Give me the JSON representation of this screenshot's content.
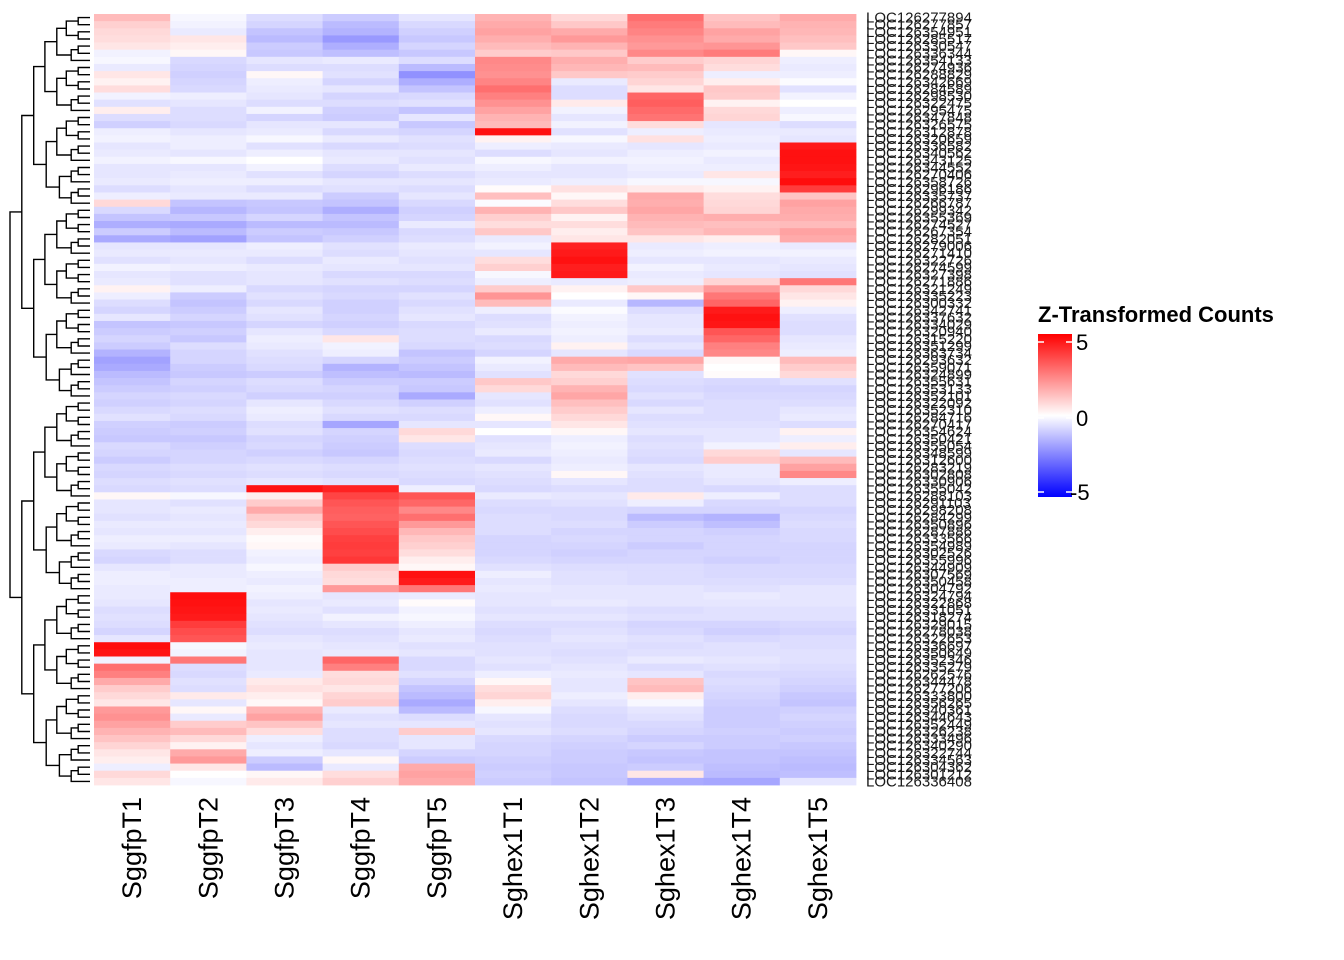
{
  "chart_data": {
    "type": "heatmap",
    "title": "",
    "columns": [
      "SggfpT1",
      "SggfpT2",
      "SggfpT3",
      "SggfpT4",
      "SggfpT5",
      "Sghex1T1",
      "Sghex1T2",
      "Sghex1T3",
      "Sghex1T4",
      "Sghex1T5"
    ],
    "row_labels": [
      "LOC126277894",
      "LOC126277857",
      "LOC126354951",
      "LOC126285517",
      "LOC126330547",
      "LOC126336344",
      "LOC126354133",
      "LOC126274936",
      "LOC126288829",
      "LOC126342669",
      "LOC126284589",
      "LOC126298530",
      "LOC126322475",
      "LOC126295475",
      "LOC126347848",
      "LOC126326575",
      "LOC126312878",
      "LOC126320659",
      "LOC126336582",
      "LOC126340562",
      "LOC126343125",
      "LOC126344552",
      "LOC126270406",
      "LOC126358726",
      "LOC126296186",
      "LOC126335737",
      "LOC126266787",
      "LOC126299342",
      "LOC126355369",
      "LOC126274527",
      "LOC126267354",
      "LOC126282051",
      "LOC126279006",
      "LOC126271410",
      "LOC126322726",
      "LOC126274599",
      "LOC126327398",
      "LOC126271886",
      "LOC126321249",
      "LOC126335223",
      "LOC126300332",
      "LOC126342741",
      "LOC126337632",
      "LOC126334029",
      "LOC126320940",
      "LOC126315220",
      "LOC126351299",
      "LOC126363734",
      "LOC126293632",
      "LOC126359071",
      "LOC126324899",
      "LOC126355631",
      "LOC126353133",
      "LOC126352101",
      "LOC126322092",
      "LOC126352310",
      "LOC126284716",
      "LOC126270417",
      "LOC126354624",
      "LOC126350421",
      "LOC126355054",
      "LOC126348599",
      "LOC126312600",
      "LOC126283219",
      "LOC126302808",
      "LOC126330906",
      "LOC126355042",
      "LOC126288103",
      "LOC126291103",
      "LOC126298208",
      "LOC126284299",
      "LOC126350896",
      "LOC126287886",
      "LOC126333566",
      "LOC126354989",
      "LOC126302526",
      "LOC126355996",
      "LOC126344909",
      "LOC126307569",
      "LOC126350458",
      "LOC126304792",
      "LOC126324794",
      "LOC126322868",
      "LOC126331051",
      "LOC126318274",
      "LOC126329015",
      "LOC126278038",
      "LOC126322653",
      "LOC126336697",
      "LOC126350649",
      "LOC126352346",
      "LOC126335279",
      "LOC126262576",
      "LOC126344478",
      "LOC126277206",
      "LOC126333800",
      "LOC126356265",
      "LOC126340361",
      "LOC126344643",
      "LOC126352449",
      "LOC126326238",
      "LOC126333496",
      "LOC126340290",
      "LOC126322744",
      "LOC126334563",
      "LOC126304362",
      "LOC126301212",
      "LOC126336408"
    ],
    "values": [
      [
        1.6,
        -0.2,
        -0.8,
        -1.2,
        -0.6,
        1.8,
        0.9,
        3.4,
        1.4,
        2.0
      ],
      [
        1.1,
        -0.3,
        -1.0,
        -1.6,
        -0.9,
        2.0,
        1.3,
        3.1,
        1.6,
        1.8
      ],
      [
        0.9,
        -0.5,
        -1.4,
        -1.8,
        -1.1,
        2.2,
        2.0,
        2.9,
        2.2,
        1.7
      ],
      [
        0.8,
        0.6,
        -1.6,
        -2.4,
        -1.3,
        1.9,
        2.4,
        2.6,
        2.0,
        1.5
      ],
      [
        0.6,
        0.4,
        -1.2,
        -1.9,
        -1.0,
        1.6,
        1.8,
        2.4,
        2.5,
        1.3
      ],
      [
        -0.3,
        0.2,
        -1.3,
        -1.5,
        -1.3,
        1.2,
        1.3,
        2.8,
        3.1,
        0.2
      ],
      [
        -0.2,
        -0.9,
        -0.6,
        -0.5,
        -0.8,
        2.8,
        1.9,
        1.2,
        1.0,
        -0.4
      ],
      [
        -0.5,
        -1.0,
        -0.8,
        -0.8,
        -1.6,
        2.7,
        1.7,
        1.6,
        0.8,
        -0.5
      ],
      [
        0.6,
        -1.1,
        0.2,
        -0.7,
        -2.6,
        2.6,
        1.3,
        1.2,
        -0.4,
        -0.4
      ],
      [
        0.3,
        -1.0,
        -0.4,
        -1.0,
        -1.9,
        2.9,
        -0.5,
        1.0,
        0.4,
        -0.1
      ],
      [
        0.8,
        -0.9,
        -0.5,
        -0.6,
        -1.4,
        3.4,
        -0.8,
        0.6,
        1.3,
        -0.7
      ],
      [
        -0.3,
        -0.4,
        -0.6,
        -1.0,
        -0.9,
        3.0,
        -0.8,
        3.6,
        1.2,
        -0.3
      ],
      [
        -0.7,
        -0.6,
        -0.8,
        -0.8,
        -0.7,
        2.6,
        0.5,
        3.8,
        0.3,
        0.0
      ],
      [
        0.4,
        -0.8,
        -0.3,
        -1.1,
        -1.4,
        2.2,
        -0.3,
        3.5,
        0.9,
        -0.4
      ],
      [
        -0.8,
        -0.8,
        -1.0,
        -1.2,
        -0.6,
        1.8,
        -0.6,
        3.3,
        1.0,
        -0.2
      ],
      [
        -1.1,
        -0.9,
        -0.6,
        -0.6,
        -1.3,
        1.6,
        -0.3,
        0.8,
        -0.6,
        -0.8
      ],
      [
        -0.4,
        -0.6,
        -0.5,
        -0.9,
        -1.0,
        5.6,
        -0.7,
        -0.4,
        -0.5,
        -0.5
      ],
      [
        -0.3,
        -0.4,
        -0.2,
        -0.5,
        -0.7,
        0.3,
        -0.2,
        0.7,
        -0.4,
        -0.6
      ],
      [
        -0.6,
        -0.4,
        -0.7,
        -0.9,
        -0.8,
        -0.4,
        -0.5,
        -0.6,
        -0.5,
        5.4
      ],
      [
        -0.5,
        -0.6,
        -0.4,
        -0.6,
        -0.6,
        -0.8,
        -0.6,
        -0.4,
        -0.3,
        5.6
      ],
      [
        -0.3,
        -0.2,
        0.0,
        -0.5,
        -0.7,
        -0.2,
        -0.3,
        -0.3,
        -0.5,
        5.6
      ],
      [
        -0.6,
        -0.6,
        -0.3,
        -0.8,
        -0.5,
        -0.4,
        -0.6,
        -0.4,
        -0.4,
        5.5
      ],
      [
        -0.6,
        -0.5,
        -0.7,
        -1.0,
        -0.8,
        -0.6,
        -0.6,
        -0.5,
        0.6,
        5.3
      ],
      [
        -0.5,
        -0.4,
        -0.4,
        -0.6,
        -0.6,
        -0.5,
        -0.4,
        -0.2,
        -0.2,
        5.7
      ],
      [
        -0.8,
        -0.6,
        -0.8,
        -0.7,
        -0.8,
        0.1,
        0.7,
        0.5,
        0.3,
        4.6
      ],
      [
        -0.4,
        -0.5,
        -0.5,
        -1.2,
        -0.6,
        1.5,
        0.2,
        2.0,
        0.8,
        1.4
      ],
      [
        0.9,
        -1.4,
        -1.3,
        -1.4,
        -0.9,
        -0.1,
        0.8,
        1.9,
        0.9,
        2.2
      ],
      [
        -0.9,
        -1.7,
        -1.4,
        -1.9,
        -1.1,
        1.8,
        1.3,
        2.1,
        1.0,
        2.0
      ],
      [
        -1.4,
        -1.3,
        -1.0,
        -1.4,
        -1.0,
        1.1,
        0.3,
        1.8,
        1.9,
        1.9
      ],
      [
        -1.9,
        -2.0,
        -1.6,
        -1.6,
        -0.5,
        0.8,
        0.8,
        1.6,
        1.5,
        1.6
      ],
      [
        -1.2,
        -1.6,
        -1.2,
        -1.3,
        -0.9,
        1.3,
        0.4,
        1.4,
        1.7,
        2.2
      ],
      [
        -2.0,
        -2.2,
        -1.4,
        -1.1,
        -0.8,
        -0.5,
        0.6,
        0.6,
        0.4,
        2.0
      ],
      [
        -0.6,
        -0.6,
        -0.4,
        -0.7,
        -0.5,
        -0.3,
        5.2,
        -0.5,
        -0.4,
        -0.5
      ],
      [
        -0.5,
        -0.5,
        -0.5,
        -0.8,
        -0.6,
        -0.6,
        5.4,
        -0.4,
        -0.3,
        -0.3
      ],
      [
        -0.7,
        -0.6,
        -0.8,
        -0.5,
        -0.7,
        0.8,
        5.6,
        -0.6,
        -0.6,
        -0.5
      ],
      [
        -0.3,
        -0.4,
        -0.5,
        -0.6,
        -0.6,
        1.1,
        5.3,
        -0.3,
        -0.5,
        -0.6
      ],
      [
        -0.6,
        -0.7,
        -0.6,
        -0.9,
        -0.9,
        -0.2,
        5.4,
        -0.5,
        -0.6,
        -0.7
      ],
      [
        -0.5,
        -0.7,
        -0.6,
        -0.7,
        -0.8,
        -0.4,
        -0.5,
        -0.4,
        1.0,
        3.2
      ],
      [
        0.3,
        -0.4,
        -0.9,
        -1.0,
        -1.0,
        1.2,
        0.3,
        1.3,
        2.4,
        0.9
      ],
      [
        -0.4,
        -1.2,
        -0.7,
        -0.9,
        -0.7,
        2.5,
        0.0,
        0.2,
        3.2,
        0.6
      ],
      [
        -0.8,
        -1.4,
        -0.9,
        -1.1,
        -0.9,
        1.6,
        -0.5,
        -1.7,
        3.6,
        0.3
      ],
      [
        -1.0,
        -1.2,
        -0.6,
        -1.1,
        -0.7,
        -0.4,
        -0.1,
        -0.8,
        5.4,
        -0.4
      ],
      [
        -0.6,
        -1.0,
        -0.7,
        -1.0,
        -0.6,
        -0.8,
        -0.3,
        -0.6,
        5.6,
        -0.7
      ],
      [
        -1.4,
        -1.3,
        -1.0,
        -1.1,
        -0.9,
        -0.7,
        -0.4,
        -0.6,
        5.5,
        -0.8
      ],
      [
        -1.2,
        -1.1,
        -0.6,
        -0.9,
        -0.8,
        -0.5,
        -0.3,
        -0.5,
        4.0,
        -0.8
      ],
      [
        -1.0,
        -1.3,
        -0.4,
        0.6,
        -0.8,
        -0.9,
        -0.4,
        -0.8,
        3.6,
        -0.6
      ],
      [
        -1.2,
        -0.8,
        -0.5,
        -0.3,
        -0.9,
        -0.8,
        0.3,
        -0.6,
        3.0,
        -0.5
      ],
      [
        -1.8,
        -1.0,
        -0.7,
        -0.4,
        -1.4,
        -1.0,
        -0.6,
        -0.9,
        2.8,
        -0.4
      ],
      [
        -2.2,
        -1.0,
        -0.8,
        -1.0,
        -1.2,
        -0.3,
        2.0,
        2.1,
        0.2,
        1.6
      ],
      [
        -2.0,
        -1.2,
        -0.9,
        -1.8,
        -1.4,
        -0.5,
        1.6,
        1.4,
        0.0,
        1.2
      ],
      [
        -1.6,
        -1.3,
        -1.2,
        -1.5,
        -1.6,
        -0.7,
        0.9,
        -0.7,
        0.1,
        0.9
      ],
      [
        -1.4,
        -1.0,
        -0.8,
        -1.2,
        -1.2,
        1.3,
        1.1,
        -0.8,
        -0.9,
        -0.7
      ],
      [
        -1.2,
        -1.1,
        -0.9,
        -1.0,
        -1.3,
        0.9,
        1.8,
        -0.9,
        -1.0,
        -1.0
      ],
      [
        -1.0,
        -0.9,
        -1.1,
        -1.1,
        -2.0,
        -0.6,
        2.1,
        -0.7,
        -0.9,
        -0.9
      ],
      [
        -1.1,
        -1.0,
        -0.6,
        -0.9,
        -1.1,
        -0.7,
        1.5,
        -0.9,
        -0.8,
        -0.8
      ],
      [
        -0.9,
        -0.8,
        -0.4,
        -0.7,
        -0.8,
        -0.4,
        1.2,
        -0.6,
        -0.8,
        -0.6
      ],
      [
        -0.7,
        -0.9,
        -0.5,
        -0.9,
        -0.9,
        0.2,
        0.9,
        -0.8,
        -0.8,
        -0.5
      ],
      [
        -1.1,
        -1.2,
        -0.8,
        -2.1,
        -0.6,
        -0.6,
        0.6,
        -0.7,
        -0.7,
        -0.8
      ],
      [
        -1.2,
        -1.1,
        -0.7,
        -1.0,
        0.9,
        0.0,
        0.2,
        -0.6,
        -0.6,
        0.3
      ],
      [
        -1.3,
        -1.3,
        -1.0,
        -1.1,
        0.6,
        -0.7,
        -0.4,
        -0.8,
        -0.6,
        -0.4
      ],
      [
        -0.9,
        -1.1,
        -0.9,
        -1.2,
        -0.8,
        -0.6,
        -0.3,
        -0.7,
        -0.3,
        0.4
      ],
      [
        -1.0,
        -1.0,
        -1.1,
        -1.3,
        -0.9,
        -0.5,
        -0.4,
        -0.8,
        0.9,
        -0.6
      ],
      [
        -1.2,
        -1.0,
        -0.9,
        -1.0,
        -0.8,
        -0.9,
        -0.5,
        -0.9,
        1.2,
        1.6
      ],
      [
        -0.9,
        -0.8,
        -0.7,
        -0.8,
        -0.7,
        -0.6,
        -0.4,
        -0.6,
        -0.5,
        2.2
      ],
      [
        -1.0,
        -0.9,
        -0.8,
        -0.9,
        -0.8,
        -0.7,
        0.2,
        -0.7,
        -0.5,
        2.8
      ],
      [
        -0.8,
        -0.7,
        -0.6,
        -0.7,
        -0.9,
        -0.8,
        -0.6,
        -0.8,
        -0.6,
        -0.4
      ],
      [
        -0.9,
        -0.8,
        5.6,
        5.2,
        -0.4,
        -0.9,
        -0.8,
        -0.8,
        -0.9,
        -0.8
      ],
      [
        0.2,
        -0.2,
        0.4,
        4.4,
        4.0,
        -0.5,
        -0.6,
        0.5,
        -0.4,
        -0.8
      ],
      [
        -0.6,
        -0.7,
        1.2,
        4.0,
        3.6,
        -0.8,
        -0.7,
        -0.4,
        -0.9,
        -0.8
      ],
      [
        -0.6,
        -0.5,
        2.0,
        3.8,
        2.8,
        -0.9,
        -0.9,
        -1.0,
        -1.0,
        -1.0
      ],
      [
        -0.7,
        -0.6,
        1.2,
        3.7,
        3.4,
        -0.8,
        -0.9,
        -1.6,
        -1.8,
        -0.9
      ],
      [
        -0.5,
        -0.5,
        0.9,
        4.0,
        2.4,
        -0.8,
        -0.8,
        -1.2,
        -1.5,
        -0.8
      ],
      [
        -0.6,
        -0.6,
        0.4,
        4.2,
        1.7,
        -0.8,
        -1.0,
        -1.0,
        -1.1,
        -0.9
      ],
      [
        -0.4,
        -0.4,
        0.1,
        4.5,
        1.3,
        -1.0,
        -0.9,
        -1.0,
        -1.0,
        -0.9
      ],
      [
        -0.5,
        -0.6,
        0.2,
        4.6,
        1.1,
        -1.0,
        -1.0,
        -1.2,
        -1.0,
        -1.0
      ],
      [
        -0.9,
        -0.8,
        -0.3,
        4.5,
        0.8,
        -1.0,
        -1.1,
        -1.0,
        -1.0,
        -1.0
      ],
      [
        -1.0,
        -0.8,
        -0.4,
        4.7,
        0.4,
        -0.9,
        -1.0,
        -1.0,
        -1.1,
        -1.0
      ],
      [
        -0.6,
        -0.5,
        -0.2,
        1.2,
        0.2,
        -0.7,
        -0.8,
        -0.8,
        -0.9,
        -0.9
      ],
      [
        -0.4,
        -0.5,
        -0.4,
        0.9,
        5.6,
        -0.4,
        -0.7,
        -0.8,
        -0.9,
        -0.9
      ],
      [
        -0.4,
        -0.4,
        -0.5,
        0.8,
        5.4,
        -0.6,
        -0.7,
        -0.8,
        -0.8,
        -0.8
      ],
      [
        -0.5,
        -0.4,
        -0.3,
        2.4,
        3.2,
        -0.5,
        -0.6,
        -0.6,
        -0.7,
        -0.6
      ],
      [
        -0.5,
        5.7,
        -0.4,
        -0.6,
        -0.5,
        -0.6,
        -0.6,
        -0.6,
        -0.5,
        -0.6
      ],
      [
        -0.6,
        5.6,
        -0.6,
        -0.5,
        0.1,
        -0.6,
        -0.5,
        -0.6,
        -0.6,
        -0.6
      ],
      [
        -0.8,
        5.5,
        -0.5,
        -0.7,
        -0.3,
        -0.7,
        -0.7,
        -0.8,
        -0.7,
        -0.7
      ],
      [
        -0.7,
        5.4,
        -0.6,
        -0.3,
        -0.2,
        -0.6,
        -0.6,
        -0.7,
        -0.7,
        -0.7
      ],
      [
        -0.8,
        4.6,
        -0.7,
        -0.6,
        -0.4,
        -0.8,
        -0.8,
        -1.0,
        -1.0,
        -0.9
      ],
      [
        -1.0,
        4.2,
        -0.8,
        -0.8,
        -0.6,
        -0.9,
        -0.7,
        -0.9,
        -1.1,
        -1.0
      ],
      [
        -0.6,
        4.0,
        -0.6,
        -0.7,
        -0.5,
        -0.8,
        -0.6,
        -0.7,
        -0.9,
        -0.8
      ],
      [
        5.7,
        -0.2,
        -0.5,
        -0.6,
        -0.7,
        -0.7,
        -0.7,
        -0.8,
        -0.7,
        -0.8
      ],
      [
        5.5,
        -0.3,
        -0.6,
        -0.5,
        -0.6,
        -0.7,
        -0.8,
        -0.7,
        -0.7,
        -0.7
      ],
      [
        -0.3,
        3.2,
        -0.6,
        3.6,
        -0.9,
        -0.6,
        -0.7,
        -0.5,
        -0.6,
        -0.7
      ],
      [
        3.4,
        -0.8,
        -0.6,
        3.0,
        -0.9,
        -0.7,
        -0.6,
        -0.8,
        -0.7,
        -0.8
      ],
      [
        3.0,
        -0.9,
        -0.5,
        0.8,
        -0.7,
        -0.4,
        -0.5,
        -0.6,
        -0.9,
        -0.9
      ],
      [
        2.0,
        -0.7,
        0.5,
        0.9,
        -1.0,
        0.2,
        -0.6,
        1.4,
        -0.8,
        -1.0
      ],
      [
        1.2,
        -0.8,
        0.7,
        0.6,
        -1.4,
        0.8,
        -0.6,
        1.6,
        -0.9,
        -1.1
      ],
      [
        0.9,
        0.5,
        0.4,
        1.0,
        -1.6,
        1.0,
        -0.4,
        0.4,
        -1.0,
        -1.3
      ],
      [
        0.6,
        -0.6,
        0.2,
        1.2,
        -2.0,
        0.4,
        -0.6,
        -0.2,
        -1.1,
        -1.4
      ],
      [
        2.4,
        0.2,
        1.8,
        -0.5,
        -1.6,
        -0.2,
        -0.8,
        -0.6,
        -1.2,
        -1.1
      ],
      [
        2.6,
        -0.5,
        2.2,
        -0.7,
        -0.8,
        -0.6,
        -0.9,
        -0.7,
        -1.2,
        -1.0
      ],
      [
        2.2,
        1.2,
        1.4,
        -0.6,
        -0.6,
        -0.7,
        -0.9,
        -0.9,
        -1.2,
        -1.1
      ],
      [
        1.8,
        1.6,
        0.8,
        -0.8,
        1.2,
        -0.6,
        -0.8,
        -1.0,
        -1.1,
        -1.2
      ],
      [
        1.4,
        0.9,
        -0.4,
        -0.8,
        -0.6,
        -0.9,
        -1.0,
        -1.2,
        -1.2,
        -1.1
      ],
      [
        1.0,
        0.3,
        -0.6,
        -0.9,
        -0.6,
        -1.0,
        -1.1,
        -1.0,
        -1.2,
        -1.3
      ],
      [
        0.6,
        2.0,
        -0.4,
        -0.6,
        -1.0,
        -1.0,
        -1.2,
        -1.3,
        -1.4,
        -1.4
      ],
      [
        0.4,
        2.4,
        -1.2,
        0.2,
        -1.2,
        -1.1,
        -1.2,
        -1.4,
        -1.4,
        -1.5
      ],
      [
        -0.4,
        0.6,
        -1.6,
        -0.5,
        2.0,
        -1.2,
        -1.3,
        -1.2,
        -1.5,
        -1.6
      ],
      [
        0.9,
        0.0,
        0.2,
        0.8,
        2.2,
        -1.1,
        -1.3,
        0.6,
        -1.6,
        -1.5
      ],
      [
        0.6,
        -0.2,
        0.5,
        1.1,
        2.0,
        -1.2,
        -1.4,
        -2.0,
        -2.1,
        -0.6
      ],
      [
        -0.8,
        -0.9,
        0.2,
        -0.6,
        1.8,
        -1.2,
        -1.3,
        -1.4,
        -1.5,
        -1.4
      ]
    ],
    "legend": {
      "title": "Z-Transformed Counts",
      "ticks": [
        5,
        0,
        -5
      ],
      "placement": "right"
    },
    "color_scale": {
      "low": "#0000ff",
      "mid": "#ffffff",
      "high": "#ff0000",
      "domain": [
        -6,
        0,
        6
      ]
    },
    "dendrogram": "rows"
  }
}
